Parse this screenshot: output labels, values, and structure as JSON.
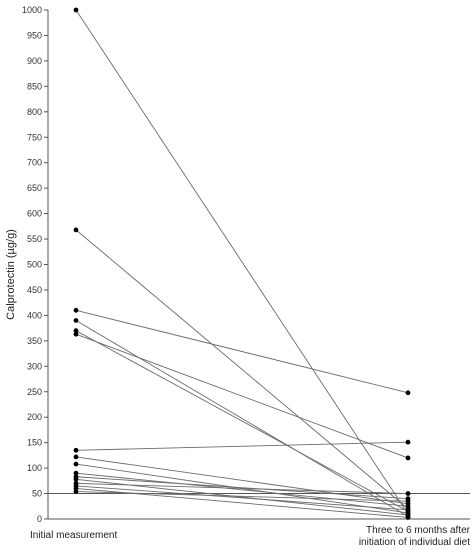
{
  "chart_data": {
    "type": "line",
    "ylabel": "Calprotectin (µg/g)",
    "ylim": [
      0,
      1000
    ],
    "yticks": [
      0,
      50,
      100,
      150,
      200,
      250,
      300,
      350,
      400,
      450,
      500,
      550,
      600,
      650,
      700,
      750,
      800,
      850,
      900,
      950,
      1000
    ],
    "categories": [
      "Initial measurement",
      "Three to 6 months after initiation of individual diet"
    ],
    "category_label_lines": [
      [
        "Initial measurement"
      ],
      [
        "Three to 6 months after",
        "initiation of individual diet"
      ]
    ],
    "reference_line": 50,
    "grid": false,
    "series": [
      {
        "values": [
          1000,
          10
        ]
      },
      {
        "values": [
          568,
          20
        ]
      },
      {
        "values": [
          410,
          248
        ]
      },
      {
        "values": [
          390,
          5
        ]
      },
      {
        "values": [
          370,
          15
        ]
      },
      {
        "values": [
          363,
          120
        ]
      },
      {
        "values": [
          135,
          151
        ]
      },
      {
        "values": [
          122,
          30
        ]
      },
      {
        "values": [
          108,
          12
        ]
      },
      {
        "values": [
          90,
          25
        ]
      },
      {
        "values": [
          83,
          40
        ]
      },
      {
        "values": [
          78,
          8
        ]
      },
      {
        "values": [
          70,
          50
        ]
      },
      {
        "values": [
          65,
          18
        ]
      },
      {
        "values": [
          60,
          3
        ]
      },
      {
        "values": [
          54,
          35
        ]
      }
    ],
    "colors": {
      "line": "#6b6b6b",
      "point": "#000000",
      "axis": "#555555",
      "reference": "#555555"
    }
  }
}
